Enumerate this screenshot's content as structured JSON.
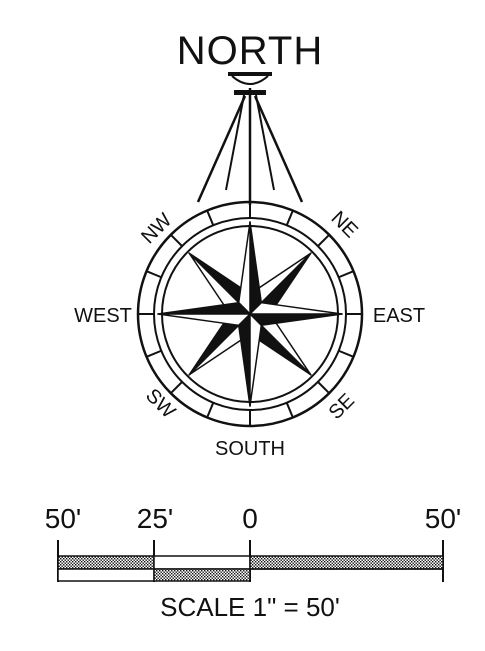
{
  "compass": {
    "title": "NORTH",
    "directions": {
      "north_east": "NE",
      "east": "EAST",
      "south_east": "SE",
      "south": "SOUTH",
      "south_west": "SW",
      "west": "WEST",
      "north_west": "NW"
    }
  },
  "scale_bar": {
    "ticks": [
      "50'",
      "25'",
      "0",
      "50'"
    ],
    "caption": "SCALE 1\" = 50'"
  },
  "colors": {
    "ink": "#111111",
    "hatch": "#666666",
    "background": "#ffffff"
  }
}
